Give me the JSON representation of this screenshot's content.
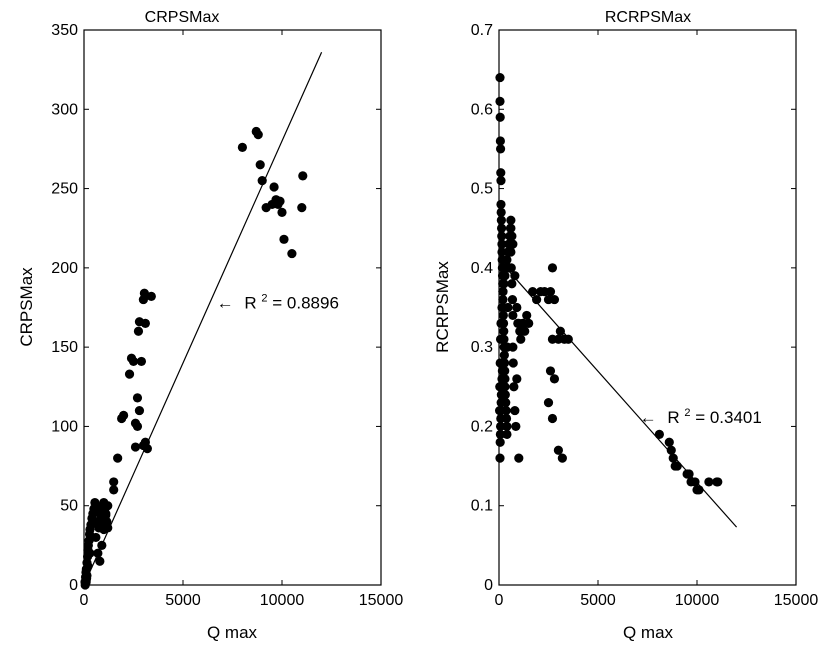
{
  "colors": {
    "marker": "#000000",
    "line": "#000000",
    "frame": "#000000"
  },
  "chart_data": [
    {
      "type": "scatter",
      "title": "CRPSMax",
      "xlabel": "Q max",
      "ylabel": "CRPSMax",
      "xlim": [
        0,
        15000
      ],
      "ylim": [
        0,
        350
      ],
      "x_ticks": [
        0,
        5000,
        10000,
        15000
      ],
      "y_ticks": [
        0,
        50,
        100,
        150,
        200,
        250,
        300,
        350
      ],
      "x_tick_labels": [
        "0",
        "5000",
        "10000",
        "15000"
      ],
      "y_tick_labels": [
        "0",
        "50",
        "100",
        "150",
        "200",
        "250",
        "300",
        "350"
      ],
      "fit_line": {
        "x": [
          0,
          12000
        ],
        "y": [
          0,
          336
        ]
      },
      "annotation": {
        "arrow": "←",
        "text_prefix": "R",
        "superscript": "2",
        "text_suffix": " = 0.8896",
        "x": 6700,
        "y": 178
      },
      "points": {
        "x": [
          50,
          80,
          100,
          120,
          150,
          180,
          200,
          220,
          250,
          280,
          300,
          350,
          400,
          450,
          500,
          550,
          600,
          650,
          700,
          750,
          800,
          850,
          900,
          950,
          1000,
          1050,
          1100,
          1150,
          1200,
          100,
          150,
          200,
          300,
          400,
          500,
          600,
          700,
          800,
          900,
          1000,
          1100,
          1200,
          1500,
          1700,
          1900,
          2000,
          2300,
          2400,
          2500,
          2600,
          2700,
          2750,
          2800,
          2900,
          3000,
          3050,
          3100,
          3200,
          3400,
          2700,
          2800,
          3000,
          3100,
          1000,
          1500,
          2600,
          8000,
          8700,
          8800,
          8900,
          9000,
          9200,
          9500,
          9600,
          9700,
          9800,
          9900,
          10000,
          10100,
          10500,
          11000,
          11050,
          60,
          70,
          90,
          110,
          130
        ],
        "y": [
          2,
          5,
          8,
          10,
          14,
          18,
          22,
          25,
          28,
          32,
          35,
          38,
          42,
          45,
          48,
          52,
          50,
          46,
          40,
          36,
          38,
          42,
          46,
          50,
          52,
          48,
          44,
          40,
          36,
          3,
          6,
          12,
          20,
          30,
          40,
          30,
          20,
          15,
          25,
          35,
          45,
          50,
          65,
          80,
          105,
          107,
          133,
          143,
          141,
          87,
          118,
          160,
          166,
          141,
          180,
          184,
          165,
          86,
          182,
          100,
          110,
          88,
          90,
          44,
          60,
          102,
          276,
          286,
          284,
          265,
          255,
          238,
          240,
          251,
          243,
          240,
          242,
          235,
          218,
          209,
          238,
          258,
          0,
          1,
          1,
          2,
          4
        ]
      }
    },
    {
      "type": "scatter",
      "title": "RCRPSMax",
      "xlabel": "Q max",
      "ylabel": "RCRPSMax",
      "xlim": [
        0,
        15000
      ],
      "ylim": [
        0,
        0.7
      ],
      "x_ticks": [
        0,
        5000,
        10000,
        15000
      ],
      "y_ticks": [
        0,
        0.1,
        0.2,
        0.3,
        0.4,
        0.5,
        0.6,
        0.7
      ],
      "x_tick_labels": [
        "0",
        "5000",
        "10000",
        "15000"
      ],
      "y_tick_labels": [
        "0",
        "0.1",
        "0.2",
        "0.3",
        "0.4",
        "0.5",
        "0.6",
        "0.7"
      ],
      "fit_line": {
        "x": [
          0,
          12000
        ],
        "y": [
          0.41,
          0.073
        ]
      },
      "annotation": {
        "arrow": "←",
        "text_prefix": "R",
        "superscript": "2",
        "text_suffix": " = 0.3401",
        "x": 7100,
        "y": 0.212
      },
      "points": {
        "x": [
          50,
          50,
          60,
          70,
          80,
          90,
          100,
          100,
          110,
          120,
          130,
          140,
          150,
          150,
          160,
          170,
          180,
          190,
          200,
          200,
          210,
          220,
          230,
          240,
          250,
          260,
          270,
          280,
          290,
          300,
          300,
          320,
          340,
          360,
          380,
          400,
          400,
          420,
          450,
          480,
          500,
          520,
          550,
          580,
          600,
          600,
          620,
          650,
          680,
          700,
          700,
          720,
          750,
          800,
          850,
          900,
          950,
          1000,
          1050,
          1100,
          1200,
          1300,
          1400,
          1500,
          1700,
          1900,
          2100,
          2300,
          2500,
          2600,
          2700,
          2800,
          2700,
          2600,
          2500,
          2700,
          2800,
          3000,
          3100,
          3300,
          3500,
          3000,
          3200,
          50,
          60,
          70,
          80,
          90,
          100,
          110,
          120,
          130,
          150,
          170,
          190,
          8100,
          8600,
          8700,
          8800,
          8900,
          9000,
          9500,
          9600,
          9700,
          9900,
          10000,
          10100,
          10600,
          11000,
          11050,
          30,
          40,
          60,
          80,
          100,
          150,
          200,
          250,
          300,
          350,
          400,
          450,
          500,
          550,
          600,
          650,
          700,
          800,
          900,
          1000
        ],
        "y": [
          0.64,
          0.61,
          0.59,
          0.56,
          0.55,
          0.52,
          0.51,
          0.48,
          0.47,
          0.46,
          0.45,
          0.44,
          0.43,
          0.42,
          0.41,
          0.4,
          0.39,
          0.38,
          0.37,
          0.36,
          0.35,
          0.34,
          0.33,
          0.32,
          0.31,
          0.3,
          0.29,
          0.28,
          0.27,
          0.26,
          0.25,
          0.24,
          0.23,
          0.22,
          0.21,
          0.2,
          0.19,
          0.3,
          0.35,
          0.4,
          0.42,
          0.43,
          0.44,
          0.45,
          0.46,
          0.42,
          0.4,
          0.38,
          0.36,
          0.34,
          0.3,
          0.28,
          0.25,
          0.22,
          0.2,
          0.26,
          0.33,
          0.33,
          0.32,
          0.31,
          0.33,
          0.32,
          0.34,
          0.33,
          0.37,
          0.36,
          0.37,
          0.37,
          0.36,
          0.37,
          0.4,
          0.36,
          0.31,
          0.27,
          0.23,
          0.21,
          0.26,
          0.31,
          0.32,
          0.31,
          0.31,
          0.17,
          0.16,
          0.16,
          0.18,
          0.19,
          0.2,
          0.21,
          0.22,
          0.23,
          0.24,
          0.25,
          0.26,
          0.27,
          0.28,
          0.19,
          0.18,
          0.17,
          0.16,
          0.15,
          0.15,
          0.14,
          0.14,
          0.13,
          0.13,
          0.12,
          0.12,
          0.13,
          0.13,
          0.13,
          0.22,
          0.25,
          0.28,
          0.31,
          0.33,
          0.35,
          0.37,
          0.38,
          0.39,
          0.4,
          0.41,
          0.42,
          0.43,
          0.44,
          0.45,
          0.44,
          0.43,
          0.39,
          0.35,
          0.16
        ]
      }
    }
  ]
}
